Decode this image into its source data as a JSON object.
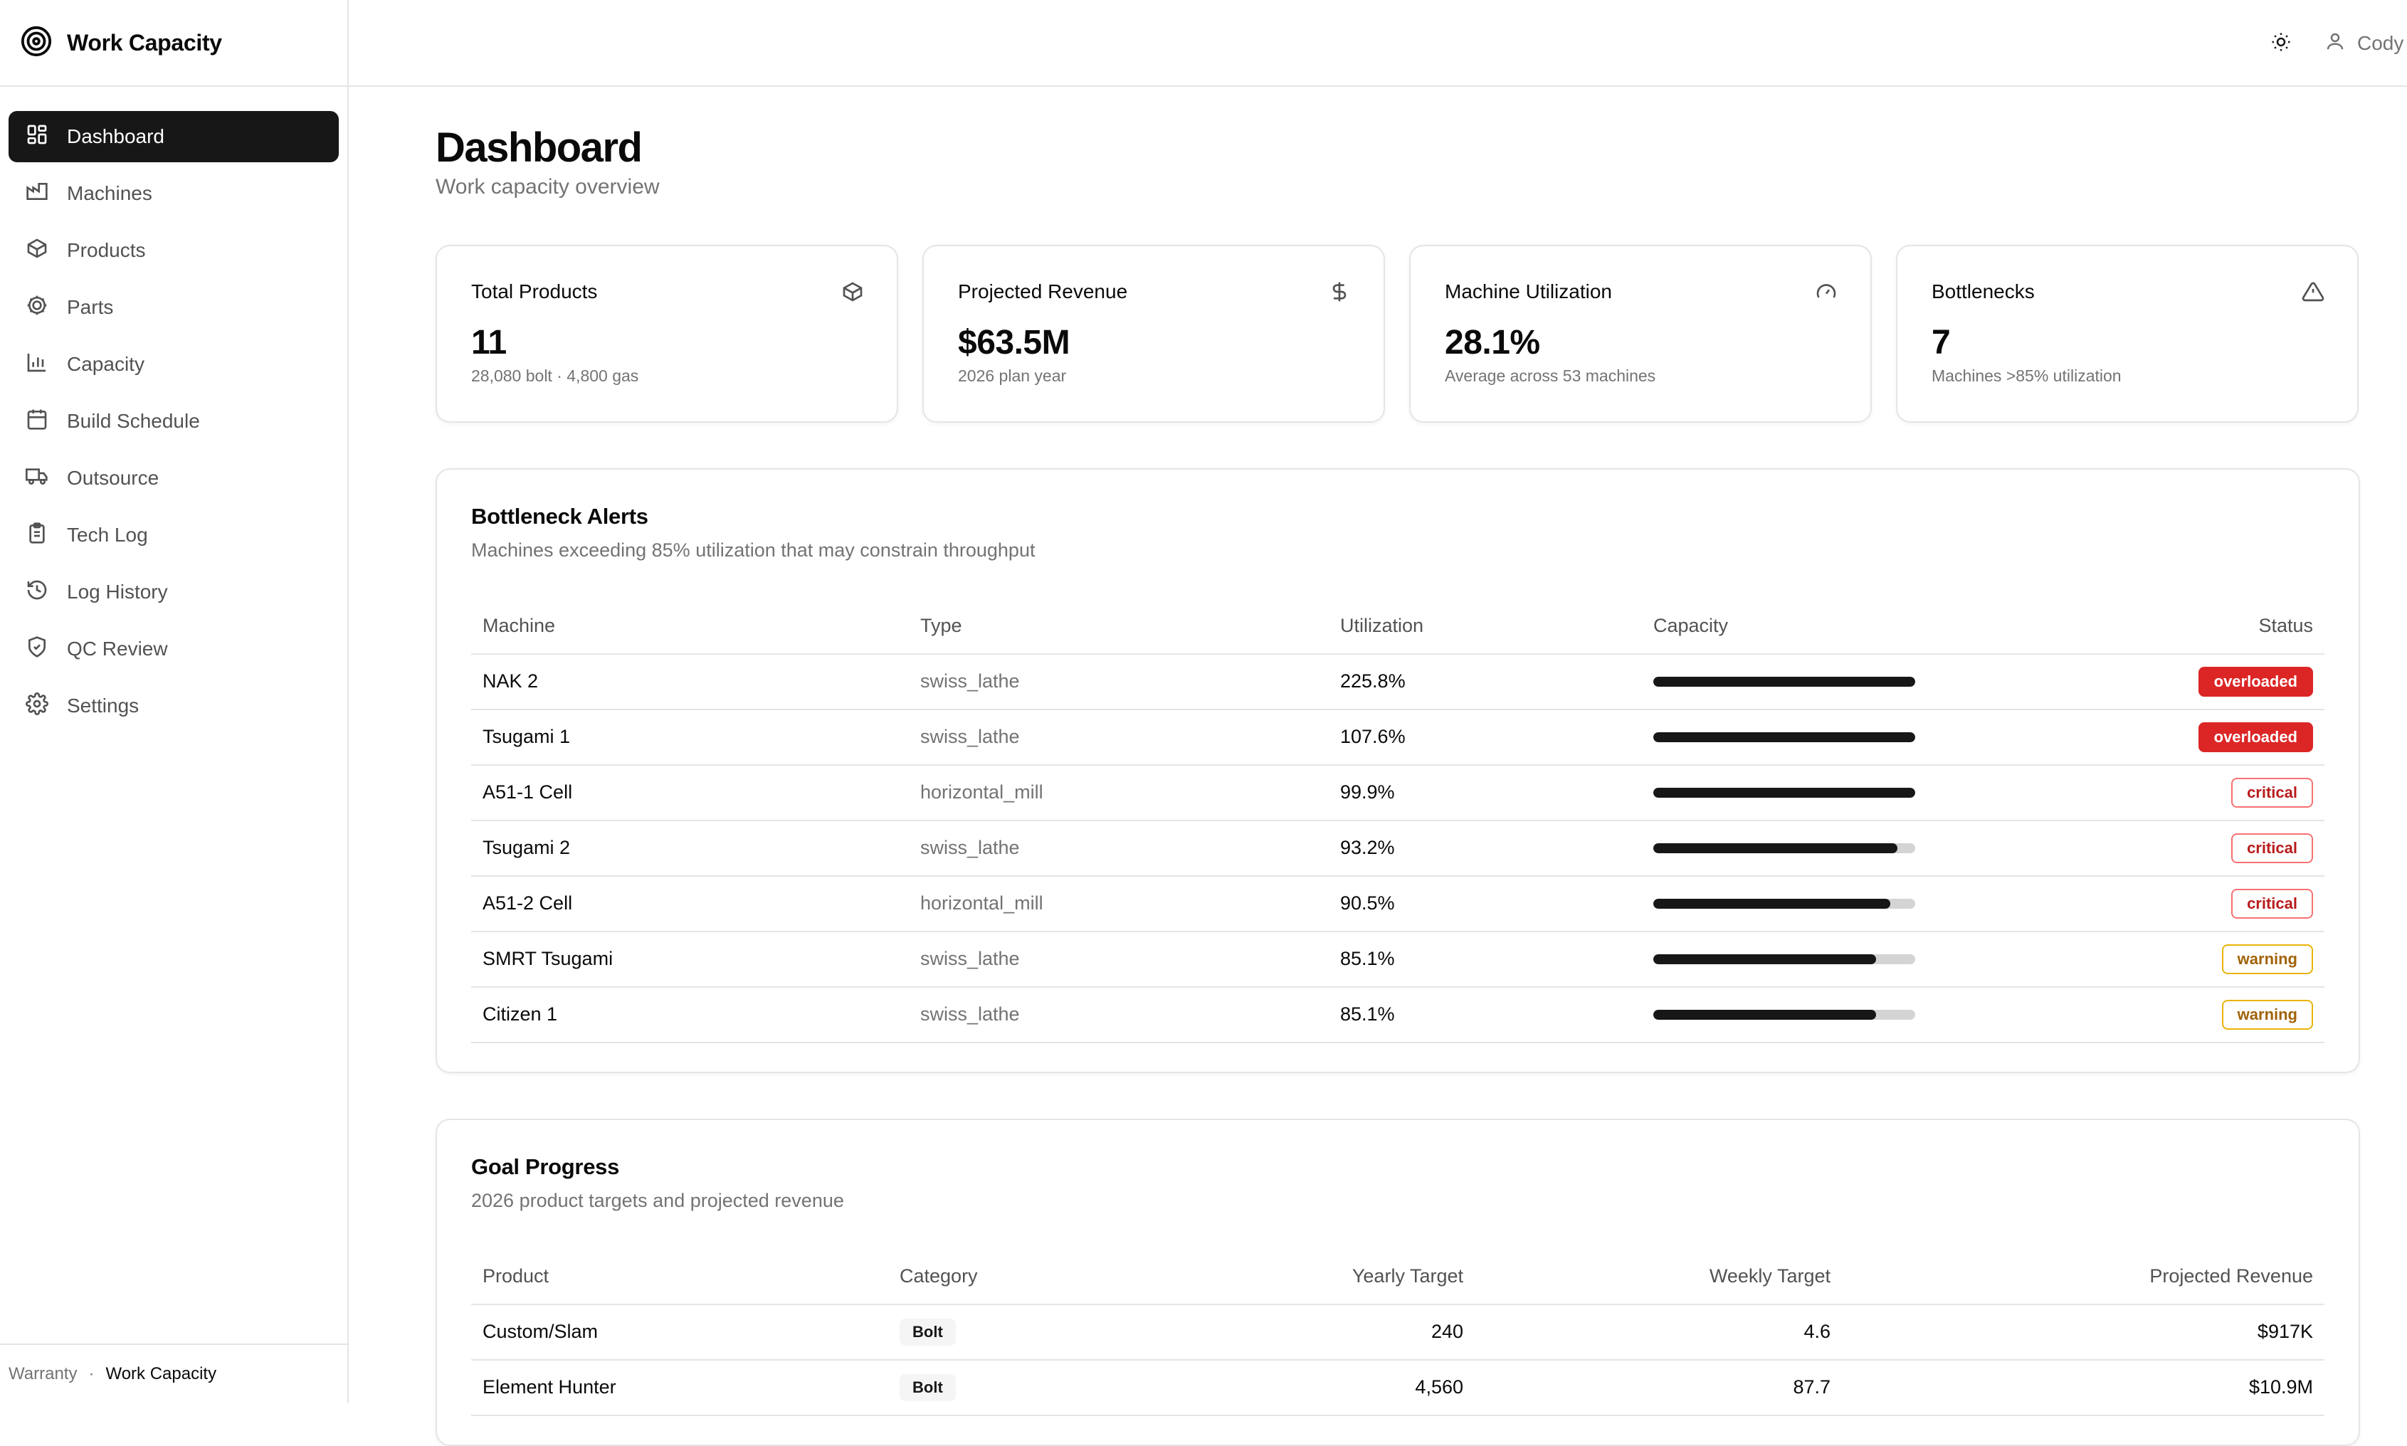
{
  "app": {
    "title": "Work Capacity"
  },
  "sidebar": {
    "items": [
      {
        "label": "Dashboard",
        "icon": "dashboard-icon",
        "active": true
      },
      {
        "label": "Machines",
        "icon": "factory-icon"
      },
      {
        "label": "Products",
        "icon": "package-icon"
      },
      {
        "label": "Parts",
        "icon": "cog-icon"
      },
      {
        "label": "Capacity",
        "icon": "bar-chart-icon"
      },
      {
        "label": "Build Schedule",
        "icon": "calendar-icon"
      },
      {
        "label": "Outsource",
        "icon": "truck-icon"
      },
      {
        "label": "Tech Log",
        "icon": "clipboard-icon"
      },
      {
        "label": "Log History",
        "icon": "history-icon"
      },
      {
        "label": "QC Review",
        "icon": "shield-check-icon"
      },
      {
        "label": "Settings",
        "icon": "settings-icon"
      }
    ],
    "footer": {
      "crumb1": "Warranty",
      "separator": "·",
      "crumb2": "Work Capacity"
    }
  },
  "topbar": {
    "user_name": "Cody"
  },
  "page": {
    "title": "Dashboard",
    "subtitle": "Work capacity overview"
  },
  "stats": [
    {
      "label": "Total Products",
      "value": "11",
      "note": "28,080 bolt · 4,800 gas",
      "icon": "package-icon"
    },
    {
      "label": "Projected Revenue",
      "value": "$63.5M",
      "note": "2026 plan year",
      "icon": "dollar-icon"
    },
    {
      "label": "Machine Utilization",
      "value": "28.1%",
      "note": "Average across 53 machines",
      "icon": "gauge-icon"
    },
    {
      "label": "Bottlenecks",
      "value": "7",
      "note": "Machines >85% utilization",
      "icon": "alert-triangle-icon"
    }
  ],
  "bottlenecks": {
    "title": "Bottleneck Alerts",
    "subtitle": "Machines exceeding 85% utilization that may constrain throughput",
    "columns": [
      "Machine",
      "Type",
      "Utilization",
      "Capacity",
      "Status"
    ],
    "rows": [
      {
        "machine": "NAK 2",
        "type": "swiss_lathe",
        "utilization": "225.8%",
        "capacity_pct": 100,
        "status": "overloaded"
      },
      {
        "machine": "Tsugami 1",
        "type": "swiss_lathe",
        "utilization": "107.6%",
        "capacity_pct": 100,
        "status": "overloaded"
      },
      {
        "machine": "A51-1 Cell",
        "type": "horizontal_mill",
        "utilization": "99.9%",
        "capacity_pct": 99.9,
        "status": "critical"
      },
      {
        "machine": "Tsugami 2",
        "type": "swiss_lathe",
        "utilization": "93.2%",
        "capacity_pct": 93.2,
        "status": "critical"
      },
      {
        "machine": "A51-2 Cell",
        "type": "horizontal_mill",
        "utilization": "90.5%",
        "capacity_pct": 90.5,
        "status": "critical"
      },
      {
        "machine": "SMRT Tsugami",
        "type": "swiss_lathe",
        "utilization": "85.1%",
        "capacity_pct": 85.1,
        "status": "warning"
      },
      {
        "machine": "Citizen 1",
        "type": "swiss_lathe",
        "utilization": "85.1%",
        "capacity_pct": 85.1,
        "status": "warning"
      }
    ]
  },
  "goals": {
    "title": "Goal Progress",
    "subtitle": "2026 product targets and projected revenue",
    "columns": [
      "Product",
      "Category",
      "Yearly Target",
      "Weekly Target",
      "Projected Revenue"
    ],
    "rows": [
      {
        "product": "Custom/Slam",
        "category": "Bolt",
        "yearly": "240",
        "weekly": "4.6",
        "revenue": "$917K"
      },
      {
        "product": "Element Hunter",
        "category": "Bolt",
        "yearly": "4,560",
        "weekly": "87.7",
        "revenue": "$10.9M"
      }
    ]
  },
  "colors": {
    "accent": "#171717",
    "overloaded": "#dc2626",
    "critical": "#b91c1c",
    "warning": "#a16207"
  }
}
